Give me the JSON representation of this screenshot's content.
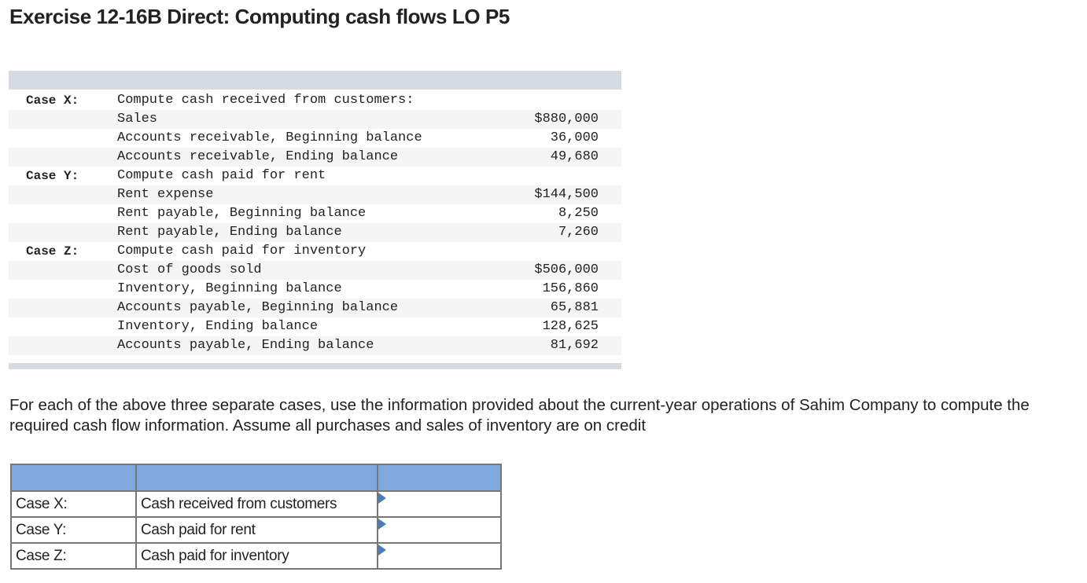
{
  "title": "Exercise 12-16B Direct: Computing cash flows LO P5",
  "data_table": {
    "rows": [
      {
        "case": "Case X:",
        "desc": "Compute cash received from customers:",
        "amount": ""
      },
      {
        "case": "",
        "desc": "Sales",
        "amount": "$880,000"
      },
      {
        "case": "",
        "desc": "Accounts receivable, Beginning balance",
        "amount": "36,000"
      },
      {
        "case": "",
        "desc": "Accounts receivable, Ending balance",
        "amount": "49,680"
      },
      {
        "case": "Case Y:",
        "desc": "Compute cash paid for rent",
        "amount": ""
      },
      {
        "case": "",
        "desc": "Rent expense",
        "amount": "$144,500"
      },
      {
        "case": "",
        "desc": "Rent payable, Beginning balance",
        "amount": "8,250"
      },
      {
        "case": "",
        "desc": "Rent payable, Ending balance",
        "amount": "7,260"
      },
      {
        "case": "Case Z:",
        "desc": "Compute cash paid for inventory",
        "amount": ""
      },
      {
        "case": "",
        "desc": "Cost of goods sold",
        "amount": "$506,000"
      },
      {
        "case": "",
        "desc": "Inventory, Beginning balance",
        "amount": "156,860"
      },
      {
        "case": "",
        "desc": "Accounts payable, Beginning balance",
        "amount": "65,881"
      },
      {
        "case": "",
        "desc": "Inventory, Ending balance",
        "amount": "128,625"
      },
      {
        "case": "",
        "desc": "Accounts payable, Ending balance",
        "amount": "81,692"
      }
    ]
  },
  "instructions": "For each of the above three separate cases, use the information provided about the current-year operations of Sahim Company to compute the required cash flow information. Assume all purchases and sales of inventory are on credit",
  "answer_table": {
    "headers": [
      "",
      "",
      ""
    ],
    "rows": [
      {
        "case": "Case X:",
        "label": "Cash received from customers",
        "value": ""
      },
      {
        "case": "Case Y:",
        "label": "Cash paid for rent",
        "value": ""
      },
      {
        "case": "Case Z:",
        "label": "Cash paid for inventory",
        "value": ""
      }
    ]
  },
  "colors": {
    "band": "#d6dbe3",
    "stripe": "#f5f5f5",
    "header_fill": "#7fa9de",
    "marker": "#4a7cc0",
    "border": "#777777"
  }
}
